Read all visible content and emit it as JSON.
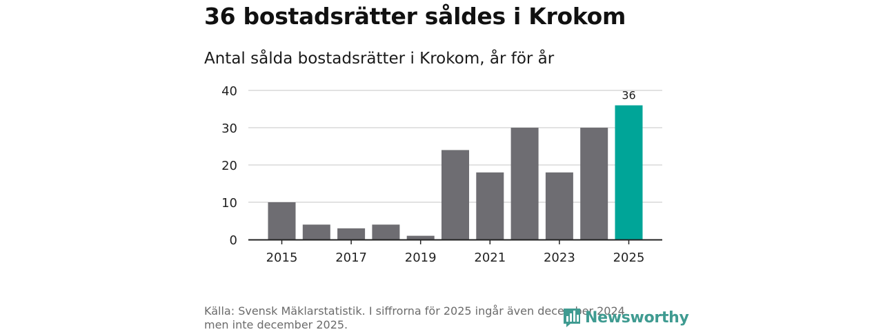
{
  "headline": "36 bostadsrätter såldes i Krokom",
  "colors": {
    "bar_default": "#6e6d72",
    "bar_highlight": "#00a598",
    "grid": "#d9d9d9",
    "axis": "#222222",
    "brand": "#3f9b91"
  },
  "chart_data": {
    "type": "bar",
    "title": "Antal sålda bostadsrätter i Krokom, år för år",
    "xlabel": "",
    "ylabel": "",
    "categories": [
      "2015",
      "2016",
      "2017",
      "2018",
      "2019",
      "2020",
      "2021",
      "2022",
      "2023",
      "2024",
      "2025"
    ],
    "values": [
      10,
      4,
      3,
      4,
      1,
      24,
      18,
      30,
      18,
      30,
      36
    ],
    "ylim": [
      0,
      40
    ],
    "yticks": [
      0,
      10,
      20,
      30,
      40
    ],
    "xtick_labels": [
      "2015",
      "2017",
      "2019",
      "2021",
      "2023",
      "2025"
    ],
    "highlight": {
      "category": "2025",
      "label": "36"
    },
    "grid": true
  },
  "footer": {
    "source_line1": "Källa: Svensk Mäklarstatistik. I siffrorna för 2025 ingår även december 2024",
    "source_line2": "men inte december 2025."
  },
  "brand": {
    "name": "Newsworthy",
    "icon": "newsworthy-logo-icon"
  }
}
